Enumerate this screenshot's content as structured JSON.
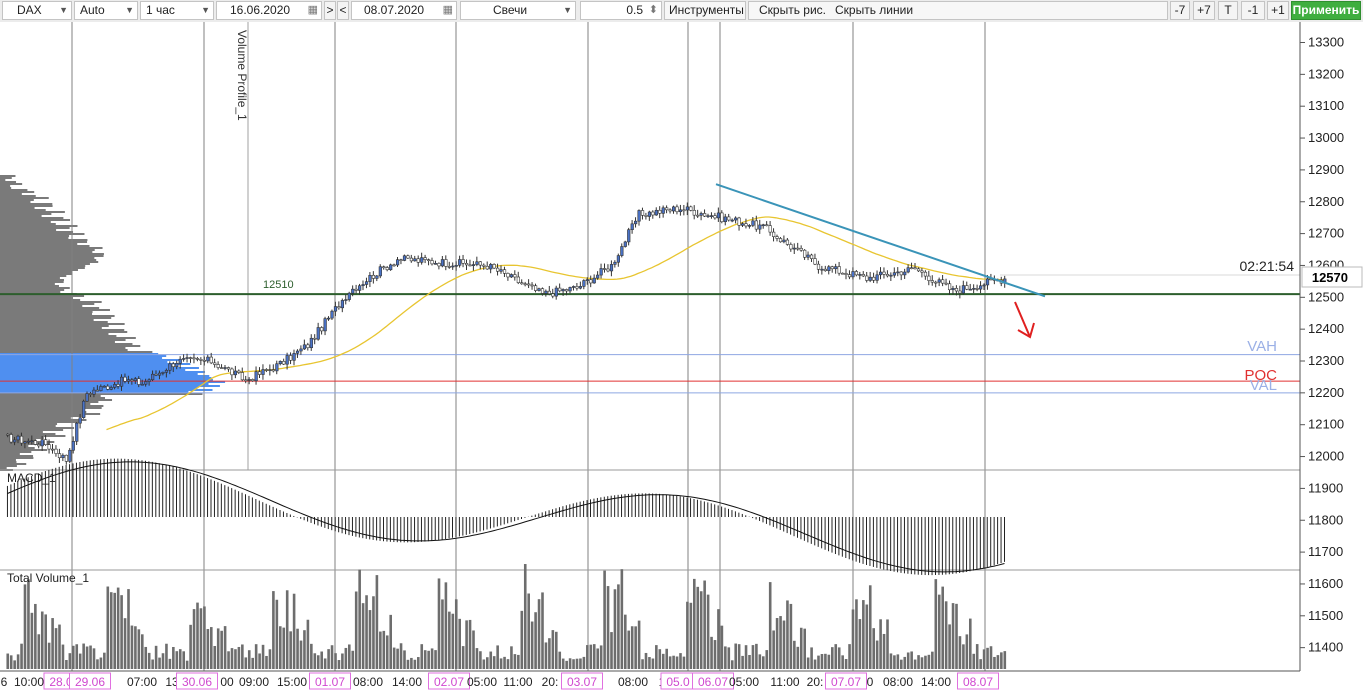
{
  "toolbar": {
    "symbol": "DAX",
    "scale": "Auto",
    "timeframe": "1 час",
    "date_from": "16.06.2020",
    "nav_forward": ">",
    "nav_back": "<",
    "date_to": "08.07.2020",
    "chart_type": "Свечи",
    "step_value": "0.5",
    "tools_label": "Инструменты",
    "hide_drawings": "Скрыть рис.",
    "hide_lines": "Скрыть линии",
    "zoom_minus7": "-7",
    "zoom_plus7": "+7",
    "t_button": "T",
    "minus1": "-1",
    "plus1": "+1",
    "apply": "Применить"
  },
  "chart": {
    "level_label": "12510",
    "study_label": "Volume Profile_1",
    "countdown": "02:21:54",
    "last_price": "12570",
    "vah": "VAH",
    "poc": "POC",
    "val": "VAL",
    "macd_label": "MACD_1",
    "volume_label": "Total Volume_1"
  },
  "chart_data": {
    "type": "candlestick",
    "instrument": "DAX",
    "timeframe": "1 час",
    "ylim": [
      11340,
      13380
    ],
    "price_ticks": [
      "13300",
      "13200",
      "13100",
      "13000",
      "12900",
      "12800",
      "12700",
      "12600",
      "12500",
      "12400",
      "12300",
      "12200",
      "12100",
      "12000",
      "11900",
      "11800",
      "11700",
      "11600",
      "11500",
      "11400"
    ],
    "levels": {
      "level_12510": 12510,
      "vah": 12320,
      "poc": 12237,
      "val": 12200,
      "last": 12570
    },
    "time_labels": [
      "6",
      "10:00",
      "28.0",
      "29.06",
      "07:00",
      "13",
      "30.06",
      "00",
      "09:00",
      "15:00",
      "01.07",
      "08:00",
      "14:00",
      "02.07",
      "05:00",
      "11:00",
      "20:",
      "03.07",
      "08:00",
      "1",
      "05.0",
      "06.07",
      "05:00",
      "11:00",
      "20:",
      "07.07",
      "0",
      "08:00",
      "14:00",
      "08.07"
    ],
    "highlighted_dates": [
      "28.0",
      "29.06",
      "30.06",
      "01.07",
      "02.07",
      "03.07",
      "05.0",
      "06.07",
      "07.07",
      "08.07"
    ],
    "colors": {
      "up": "#4a72c6",
      "down": "#2a2a2a",
      "ma": "#e8c530",
      "trendline": "#3a94b8",
      "level": "#2c5e2c",
      "vah_val": "#8ea6e2",
      "poc": "#e03030",
      "profile": "#7a7a7a",
      "profile_value_area": "#4f8ff0",
      "arrow": "#e02020"
    }
  }
}
